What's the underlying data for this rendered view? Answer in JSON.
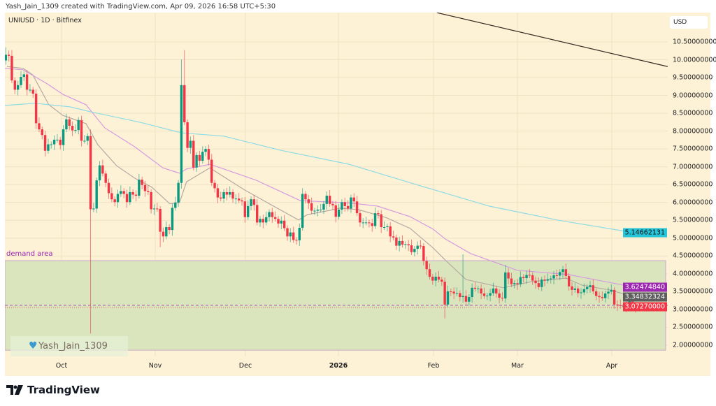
{
  "header": {
    "credit": "Yash_Jain_1309 created with TradingView.com, Apr 09, 2026 16:58 UTC+5:30"
  },
  "symbol": {
    "label": "UNIUSD · 1D · Bitfinex"
  },
  "currency": "USD",
  "watermark": {
    "icon": "blue-heart-icon",
    "text": "Yash_Jain_1309"
  },
  "brand": {
    "logo": "TradingView"
  },
  "colors": {
    "background": "#fdf1d6",
    "up": "#089981",
    "down": "#f23645",
    "ma_short": "#b5aba2",
    "ma_mid": "#d59be0",
    "ma_long": "#8fdbe3",
    "demand_fill": "#dbe5bd",
    "demand_label": "#9c27b0",
    "trendline": "#3a2a22"
  },
  "chart_data": {
    "type": "candlestick",
    "symbol": "UNIUSD",
    "interval": "1D",
    "exchange": "Bitfinex",
    "ylim": [
      1.65,
      11.34
    ],
    "y_ticks": [
      "10.50000000",
      "10.00000000",
      "9.50000000",
      "9.00000000",
      "8.50000000",
      "8.00000000",
      "7.50000000",
      "7.00000000",
      "6.50000000",
      "6.00000000",
      "5.50000000",
      "5.00000000",
      "4.50000000",
      "4.00000000",
      "3.50000000",
      "3.00000000",
      "2.50000000",
      "2.00000000"
    ],
    "x_ticks": [
      {
        "label": "Oct",
        "bold": false
      },
      {
        "label": "Nov",
        "bold": false
      },
      {
        "label": "Dec",
        "bold": false
      },
      {
        "label": "2026",
        "bold": true
      },
      {
        "label": "Feb",
        "bold": false
      },
      {
        "label": "Mar",
        "bold": false
      },
      {
        "label": "Apr",
        "bold": false
      }
    ],
    "first_open": 9.98,
    "closes": [
      10.14,
      10.11,
      9.42,
      9.16,
      9.29,
      9.52,
      9.59,
      9.16,
      9.16,
      9.05,
      8.22,
      8.05,
      7.89,
      7.45,
      7.63,
      7.63,
      7.76,
      7.76,
      7.61,
      8.05,
      8.33,
      8.15,
      8.02,
      8.03,
      8.31,
      7.73,
      7.73,
      7.86,
      5.81,
      5.83,
      6.62,
      7.04,
      6.81,
      6.55,
      6.26,
      6.09,
      6.01,
      6.24,
      6.32,
      6.24,
      6.01,
      6.29,
      6.22,
      6.19,
      6.64,
      6.49,
      6.32,
      6.29,
      5.81,
      5.83,
      5.82,
      5.18,
      5.05,
      5.31,
      5.23,
      5.85,
      6.0,
      6.55,
      9.29,
      8.25,
      7.53,
      7.73,
      6.98,
      7.33,
      7.17,
      7.42,
      7.5,
      7.2,
      6.55,
      6.4,
      6.14,
      6.11,
      6.29,
      6.22,
      6.29,
      6.11,
      6.11,
      6.06,
      6.03,
      5.59,
      5.9,
      6.09,
      5.93,
      5.44,
      5.54,
      5.44,
      5.59,
      5.73,
      5.59,
      5.54,
      5.41,
      5.49,
      5.28,
      5.05,
      5.16,
      4.95,
      4.94,
      5.29,
      6.24,
      6.09,
      5.98,
      5.77,
      5.77,
      5.8,
      5.8,
      5.96,
      6.19,
      5.96,
      5.92,
      5.6,
      5.8,
      6.01,
      5.9,
      5.83,
      6.14,
      6.03,
      5.7,
      5.44,
      5.44,
      5.44,
      5.42,
      5.34,
      5.7,
      5.67,
      5.31,
      5.31,
      5.33,
      5.05,
      5.02,
      4.79,
      4.92,
      4.82,
      4.83,
      4.8,
      4.61,
      4.7,
      4.79,
      4.78,
      4.36,
      4.13,
      3.92,
      3.81,
      3.92,
      3.84,
      3.78,
      3.14,
      3.51,
      3.5,
      3.45,
      3.46,
      3.35,
      3.38,
      3.22,
      3.35,
      3.61,
      3.58,
      3.59,
      3.45,
      3.38,
      3.39,
      3.46,
      3.59,
      3.45,
      3.33,
      3.31,
      4.04,
      3.87,
      3.71,
      3.74,
      3.71,
      3.91,
      3.88,
      3.97,
      3.96,
      3.81,
      3.74,
      3.63,
      3.84,
      3.81,
      3.85,
      3.87,
      3.96,
      3.95,
      4.05,
      4.13,
      3.94,
      3.65,
      3.55,
      3.59,
      3.46,
      3.48,
      3.57,
      3.63,
      3.68,
      3.51,
      3.38,
      3.35,
      3.32,
      3.45,
      3.5,
      3.55,
      3.14,
      3.12,
      3.1,
      3.1,
      3.09,
      3.27,
      3.09,
      3.07
    ],
    "wick_extremes": [
      {
        "bar": 1,
        "high": 10.35
      },
      {
        "bar": 29,
        "low": 2.33,
        "high": 8.05
      },
      {
        "bar": 59,
        "high": 10.01
      },
      {
        "bar": 60,
        "high": 10.27
      },
      {
        "bar": 52,
        "low": 4.75
      },
      {
        "bar": 146,
        "low": 2.75
      },
      {
        "bar": 152,
        "high": 4.55
      },
      {
        "bar": 166,
        "high": 4.25
      },
      {
        "bar": 185,
        "high": 4.22
      }
    ],
    "moving_averages": [
      {
        "color_key": "ma_short",
        "last": "3.34832324",
        "points": [
          [
            1.4,
            9.81
          ],
          [
            6.7,
            9.76
          ],
          [
            9.9,
            9.58
          ],
          [
            15.2,
            8.74
          ],
          [
            19.9,
            8.44
          ],
          [
            27.5,
            8.21
          ],
          [
            31.4,
            7.62
          ],
          [
            37.6,
            7.03
          ],
          [
            43.6,
            6.68
          ],
          [
            49.2,
            6.43
          ],
          [
            55.2,
            5.96
          ],
          [
            58.4,
            6.0
          ],
          [
            60.7,
            6.58
          ],
          [
            68.4,
            6.97
          ],
          [
            73,
            6.72
          ],
          [
            79.9,
            6.35
          ],
          [
            87.5,
            5.99
          ],
          [
            97.7,
            5.51
          ],
          [
            100.6,
            5.66
          ],
          [
            106.9,
            5.76
          ],
          [
            111.5,
            5.84
          ],
          [
            117.5,
            5.8
          ],
          [
            126.8,
            5.57
          ],
          [
            134.6,
            5.27
          ],
          [
            142.2,
            4.72
          ],
          [
            146.1,
            4.39
          ],
          [
            153,
            3.84
          ],
          [
            165.3,
            3.61
          ],
          [
            174.5,
            3.78
          ],
          [
            186,
            3.88
          ],
          [
            191.4,
            3.68
          ],
          [
            200.6,
            3.55
          ],
          [
            208.7,
            3.35
          ]
        ]
      },
      {
        "color_key": "ma_mid",
        "last": "3.62474840",
        "points": [
          [
            0.7,
            9.76
          ],
          [
            6.7,
            9.72
          ],
          [
            14.6,
            9.33
          ],
          [
            19.9,
            9.03
          ],
          [
            27.5,
            8.74
          ],
          [
            33.7,
            8.09
          ],
          [
            43.6,
            7.56
          ],
          [
            52.9,
            6.97
          ],
          [
            58.4,
            6.82
          ],
          [
            60.7,
            6.94
          ],
          [
            68.4,
            7.07
          ],
          [
            73,
            6.94
          ],
          [
            83.8,
            6.62
          ],
          [
            98.3,
            6.05
          ],
          [
            114.4,
            5.99
          ],
          [
            123.7,
            5.9
          ],
          [
            134.6,
            5.6
          ],
          [
            142.2,
            5.25
          ],
          [
            146.1,
            4.98
          ],
          [
            154.5,
            4.57
          ],
          [
            169.9,
            4.1
          ],
          [
            186.8,
            3.98
          ],
          [
            209,
            3.62
          ]
        ]
      },
      {
        "color_key": "ma_long",
        "last": "5.14662131",
        "points": [
          [
            0.7,
            8.72
          ],
          [
            10.6,
            8.78
          ],
          [
            22.2,
            8.68
          ],
          [
            29.1,
            8.54
          ],
          [
            45.3,
            8.25
          ],
          [
            59.1,
            7.95
          ],
          [
            73,
            7.86
          ],
          [
            91.4,
            7.47
          ],
          [
            114.4,
            7.07
          ],
          [
            137.5,
            6.48
          ],
          [
            160.6,
            5.9
          ],
          [
            183.7,
            5.5
          ],
          [
            208.7,
            5.15
          ]
        ]
      }
    ],
    "last_price": "3.07270000",
    "trendline": [
      [
        143.4,
        11.32
      ],
      [
        219.6,
        9.81
      ]
    ],
    "demand_zone": {
      "label": "demand area",
      "top": 4.37,
      "bottom": 1.86
    },
    "price_lines": [
      {
        "price": 3.12,
        "style": "dashed",
        "color": "#9c27b0"
      },
      {
        "price": 3.06,
        "style": "dotted",
        "color": "#f23645"
      }
    ]
  }
}
